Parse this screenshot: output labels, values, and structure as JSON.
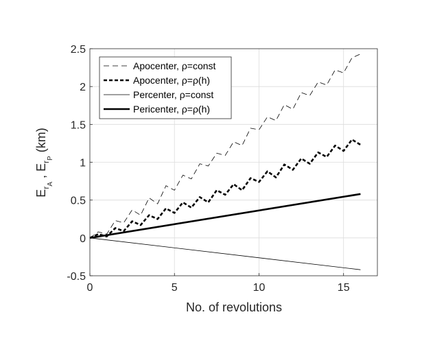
{
  "chart_data": {
    "type": "line",
    "title": "",
    "xlabel": "No. of revolutions",
    "ylabel": {
      "base": "E",
      "sub1": "r",
      "sub1b": "A",
      "sep": " , ",
      "base2": "E",
      "sub2": "r",
      "sub2b": "P",
      "unit": " (km)"
    },
    "xlim": [
      0,
      17
    ],
    "ylim": [
      -0.5,
      2.5
    ],
    "xticks": [
      0,
      5,
      10,
      15
    ],
    "yticks": [
      -0.5,
      0,
      0.5,
      1,
      1.5,
      2,
      2.5
    ],
    "xtick_labels": [
      "0",
      "5",
      "10",
      "15"
    ],
    "ytick_labels": [
      "-0.5",
      "0",
      "0.5",
      "1",
      "1.5",
      "2",
      "2.5"
    ],
    "grid": true,
    "legend_position": "top-left",
    "series": [
      {
        "name": "Apocenter, ρ=const",
        "style": "thin-dashed",
        "color": "#000000",
        "x": [
          0,
          0.5,
          1,
          1.5,
          2,
          2.5,
          3,
          3.5,
          4,
          4.5,
          5,
          5.5,
          6,
          6.5,
          7,
          7.5,
          8,
          8.5,
          9,
          9.5,
          10,
          10.5,
          11,
          11.5,
          12,
          12.5,
          13,
          13.5,
          14,
          14.5,
          15,
          15.5,
          16
        ],
        "y": [
          0,
          0.08,
          0.05,
          0.23,
          0.2,
          0.37,
          0.3,
          0.53,
          0.45,
          0.69,
          0.63,
          0.83,
          0.78,
          0.98,
          0.95,
          1.12,
          1.09,
          1.27,
          1.22,
          1.45,
          1.43,
          1.6,
          1.55,
          1.76,
          1.7,
          1.92,
          1.88,
          2.06,
          2.02,
          2.22,
          2.18,
          2.38,
          2.43
        ]
      },
      {
        "name": "Apocenter, ρ=ρ(h)",
        "style": "thick-dashed",
        "color": "#000000",
        "x": [
          0,
          0.5,
          1,
          1.5,
          2,
          2.5,
          3,
          3.5,
          4,
          4.5,
          5,
          5.5,
          6,
          6.5,
          7,
          7.5,
          8,
          8.5,
          9,
          9.5,
          10,
          10.5,
          11,
          11.5,
          12,
          12.5,
          13,
          13.5,
          14,
          14.5,
          15,
          15.5,
          16
        ],
        "y": [
          0,
          0.05,
          0.02,
          0.13,
          0.09,
          0.22,
          0.17,
          0.3,
          0.25,
          0.39,
          0.33,
          0.47,
          0.4,
          0.54,
          0.47,
          0.63,
          0.57,
          0.71,
          0.63,
          0.79,
          0.74,
          0.88,
          0.8,
          0.97,
          0.9,
          1.05,
          0.98,
          1.13,
          1.07,
          1.22,
          1.15,
          1.3,
          1.23
        ]
      },
      {
        "name": "Percenter, ρ=const",
        "style": "thin-solid",
        "color": "#000000",
        "x": [
          0,
          16
        ],
        "y": [
          0,
          -0.42
        ]
      },
      {
        "name": "Pericenter, ρ=ρ(h)",
        "style": "thick-solid",
        "color": "#000000",
        "x": [
          0,
          16
        ],
        "y": [
          0,
          0.58
        ]
      }
    ]
  }
}
